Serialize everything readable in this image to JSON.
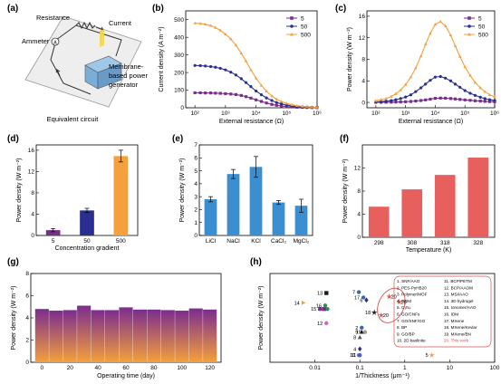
{
  "panel_letters": [
    "(a)",
    "(b)",
    "(c)",
    "(d)",
    "(e)",
    "(f)",
    "(g)",
    "(h)"
  ],
  "colors": {
    "purple": "#7b2d8e",
    "navy": "#2a2f8f",
    "orange": "#f4a03c",
    "blue": "#3b66b4",
    "red": "#d9534f",
    "green": "#2e8b57",
    "gray": "#666666"
  },
  "schematic": {
    "resistance": "Resistance",
    "current": "Current",
    "ammeter": "Ammeter",
    "ammeter_symbol": "A",
    "membrane": "Membrane-\nbased power\ngenerator",
    "caption": "Equivalent circuit"
  },
  "chart_data": [
    {
      "id": "b",
      "type": "line",
      "xscale": "log",
      "xlabel": "External resistance (Ω)",
      "ylabel": "Current density (A m⁻²)",
      "xlim": [
        50,
        1000000
      ],
      "ylim": [
        0,
        550
      ],
      "xticks": [
        {
          "v": 100,
          "label": "10²"
        },
        {
          "v": 1000,
          "label": "10³"
        },
        {
          "v": 10000,
          "label": "10⁴"
        },
        {
          "v": 100000,
          "label": "10⁵"
        },
        {
          "v": 1000000,
          "label": "10⁶"
        }
      ],
      "yticks": [
        0,
        100,
        200,
        300,
        400,
        500
      ],
      "x": [
        100,
        150,
        220,
        330,
        470,
        680,
        1000,
        1500,
        2200,
        3300,
        4700,
        6800,
        10000,
        15000,
        22000,
        33000,
        47000,
        68000,
        100000,
        150000,
        220000,
        330000,
        470000,
        680000,
        1000000
      ],
      "series": [
        {
          "name": "5",
          "color": "#7b2d8e",
          "marker": "square",
          "values": [
            85,
            85,
            84,
            84,
            83,
            82,
            80,
            78,
            75,
            70,
            63,
            55,
            45,
            36,
            27,
            19,
            14,
            10,
            7,
            5,
            3.5,
            2.4,
            1.7,
            1.2,
            0.8
          ]
        },
        {
          "name": "50",
          "color": "#2a2f8f",
          "marker": "circle",
          "values": [
            240,
            239,
            237,
            234,
            230,
            224,
            215,
            202,
            186,
            165,
            143,
            120,
            95,
            74,
            56,
            41,
            30,
            22,
            16,
            11,
            7.5,
            5.2,
            3.7,
            2.6,
            1.8
          ]
        },
        {
          "name": "500",
          "color": "#f4a03c",
          "marker": "triangle",
          "values": [
            480,
            478,
            474,
            466,
            455,
            440,
            418,
            390,
            355,
            310,
            265,
            215,
            168,
            127,
            94,
            67,
            49,
            35,
            25,
            17,
            12,
            8,
            5.7,
            4,
            2.8
          ]
        }
      ],
      "legend_position": "top-right"
    },
    {
      "id": "c",
      "type": "line",
      "xscale": "log",
      "xlabel": "External resistance (Ω)",
      "ylabel": "Power density (W m⁻²)",
      "xlim": [
        50,
        1000000
      ],
      "ylim": [
        -1,
        17
      ],
      "xticks": [
        {
          "v": 100,
          "label": "10²"
        },
        {
          "v": 1000,
          "label": "10³"
        },
        {
          "v": 10000,
          "label": "10⁴"
        },
        {
          "v": 100000,
          "label": "10⁵"
        },
        {
          "v": 1000000,
          "label": "10⁶"
        }
      ],
      "yticks": [
        0,
        4,
        8,
        12,
        16
      ],
      "x": [
        100,
        150,
        220,
        330,
        470,
        680,
        1000,
        1500,
        2200,
        3300,
        4700,
        6800,
        10000,
        15000,
        22000,
        33000,
        47000,
        68000,
        100000,
        150000,
        220000,
        330000,
        470000,
        680000,
        1000000
      ],
      "series": [
        {
          "name": "5",
          "color": "#7b2d8e",
          "marker": "square",
          "values": [
            0.01,
            0.02,
            0.03,
            0.04,
            0.06,
            0.08,
            0.12,
            0.17,
            0.25,
            0.35,
            0.46,
            0.6,
            0.75,
            0.8,
            0.78,
            0.72,
            0.64,
            0.55,
            0.46,
            0.38,
            0.3,
            0.24,
            0.19,
            0.15,
            0.12
          ]
        },
        {
          "name": "50",
          "color": "#2a2f8f",
          "marker": "circle",
          "values": [
            0.1,
            0.15,
            0.22,
            0.33,
            0.5,
            0.7,
            1.0,
            1.4,
            2.0,
            2.7,
            3.4,
            4.1,
            4.7,
            4.8,
            4.5,
            4.0,
            3.4,
            2.8,
            2.2,
            1.7,
            1.3,
            0.95,
            0.7,
            0.5,
            0.35
          ]
        },
        {
          "name": "500",
          "color": "#f4a03c",
          "marker": "triangle",
          "values": [
            0.3,
            0.5,
            0.7,
            1.1,
            1.6,
            2.3,
            3.3,
            4.7,
            6.4,
            8.6,
            10.8,
            12.8,
            14.5,
            15.0,
            14.2,
            12.5,
            10.5,
            8.5,
            6.6,
            5.0,
            3.7,
            2.7,
            2.0,
            1.4,
            1.0
          ]
        }
      ],
      "legend_position": "top-right"
    },
    {
      "id": "d",
      "type": "bar",
      "xlabel": "Concentration gradient",
      "ylabel": "Power density (W m⁻²)",
      "ylim": [
        0,
        17
      ],
      "yticks": [
        0,
        4,
        8,
        12,
        16
      ],
      "categories": [
        "5",
        "50",
        "500"
      ],
      "values": [
        1.0,
        4.7,
        14.9
      ],
      "errors": [
        0.3,
        0.4,
        1.1
      ],
      "colors": [
        "#7b2d8e",
        "#2a2f8f",
        "#f4a03c"
      ]
    },
    {
      "id": "e",
      "type": "bar",
      "xlabel": "",
      "ylabel": "Power density (W m⁻²)",
      "ylim": [
        0,
        7
      ],
      "yticks": [
        0,
        1,
        2,
        3,
        4,
        5,
        6,
        7
      ],
      "categories": [
        "LiCl",
        "NaCl",
        "KCl",
        "CaCl₂",
        "MgCl₂"
      ],
      "values": [
        2.8,
        4.75,
        5.3,
        2.55,
        2.3
      ],
      "errors": [
        0.2,
        0.35,
        0.8,
        0.15,
        0.5
      ],
      "color": "#3b8fd1"
    },
    {
      "id": "f",
      "type": "bar",
      "xlabel": "Temperature (K)",
      "ylabel": "Power density (W m⁻²)",
      "ylim": [
        0,
        16
      ],
      "yticks": [
        0,
        4,
        8,
        12
      ],
      "categories": [
        "298",
        "308",
        "318",
        "328"
      ],
      "values": [
        5.3,
        8.3,
        10.8,
        13.8
      ],
      "color": "#e8605e"
    },
    {
      "id": "g",
      "type": "bar",
      "xlabel": "Operating time (day)",
      "ylabel": "Power density (W m⁻²)",
      "ylim": [
        0,
        8
      ],
      "yticks": [
        0,
        2,
        4,
        6,
        8
      ],
      "xlim": [
        -8,
        128
      ],
      "xticks": [
        0,
        20,
        40,
        60,
        80,
        100,
        120
      ],
      "x": [
        0,
        10,
        20,
        30,
        40,
        50,
        60,
        70,
        80,
        90,
        100,
        110,
        120
      ],
      "values": [
        4.8,
        4.65,
        4.7,
        5.1,
        4.7,
        4.7,
        4.95,
        4.75,
        4.75,
        4.7,
        4.65,
        4.85,
        4.75
      ],
      "gradient": [
        "#7b2d8e",
        "#f4a03c"
      ]
    },
    {
      "id": "h",
      "type": "scatter",
      "xscale": "log",
      "xlabel": "1/Thickness (μm⁻¹)",
      "ylabel": "Power density (W m⁻²)",
      "xlim": [
        0.001,
        100
      ],
      "ylim": [
        0,
        1
      ],
      "xticks": [
        {
          "v": 0.01,
          "label": "0.01"
        },
        {
          "v": 0.1,
          "label": "0.1"
        },
        {
          "v": 1,
          "label": "1"
        },
        {
          "v": 10,
          "label": "10"
        },
        {
          "v": 100,
          "label": "100"
        }
      ],
      "points": [
        {
          "label": "1",
          "x": 0.019,
          "y": 0.6,
          "color": "#2e8b57",
          "marker": "circle"
        },
        {
          "label": "2",
          "x": 0.11,
          "y": 0.39,
          "color": "#3b66b4",
          "marker": "circle"
        },
        {
          "label": "3",
          "x": 0.016,
          "y": 0.6,
          "color": "#7b2d8e",
          "marker": "square"
        },
        {
          "label": "4",
          "x": 0.1,
          "y": 0.15,
          "color": "#2a2f8f",
          "marker": "diamond"
        },
        {
          "label": "5",
          "x": 4.0,
          "y": 0.08,
          "color": "#f4a03c",
          "marker": "star"
        },
        {
          "label": "6",
          "x": 0.14,
          "y": 0.7,
          "color": "#2a2f8f",
          "marker": "diamond"
        },
        {
          "label": "7",
          "x": 0.095,
          "y": 0.79,
          "color": "#3b66b4",
          "marker": "circle"
        },
        {
          "label": "8",
          "x": 0.1,
          "y": 0.28,
          "color": "#555555",
          "marker": "triangle"
        },
        {
          "label": "9",
          "x": 0.11,
          "y": 0.34,
          "color": "#1a1a1a",
          "marker": "triangle"
        },
        {
          "label": "10",
          "x": 0.095,
          "y": 0.08,
          "color": "#7b68ee",
          "marker": "circle"
        },
        {
          "label": "11",
          "x": 0.1,
          "y": 0.08,
          "color": "#3b66b4",
          "marker": "circle"
        },
        {
          "label": "12",
          "x": 0.018,
          "y": 0.44,
          "color": "#cc66cc",
          "marker": "circle"
        },
        {
          "label": "13",
          "x": 0.018,
          "y": 0.78,
          "color": "#1a1a1a",
          "marker": "square"
        },
        {
          "label": "14",
          "x": 0.0055,
          "y": 0.67,
          "color": "#f4a03c",
          "marker": "triangle-right"
        },
        {
          "label": "15",
          "x": 0.013,
          "y": 0.6,
          "color": "#7b2d8e",
          "marker": "circle"
        },
        {
          "label": "16",
          "x": 0.017,
          "y": 0.64,
          "color": "#2e8b57",
          "marker": "circle"
        },
        {
          "label": "17",
          "x": 0.12,
          "y": 0.73,
          "color": "#3b66b4",
          "marker": "circle"
        },
        {
          "label": "18",
          "x": 0.21,
          "y": 0.56,
          "color": "#1a1a1a",
          "marker": "star"
        },
        {
          "label": "19",
          "x": 0.13,
          "y": 0.34,
          "color": "#999999",
          "marker": "circle"
        },
        {
          "label": "20",
          "x": 0.3,
          "y": 0.53,
          "color": "#d9534f",
          "marker": "star"
        },
        {
          "label": "20",
          "x": 0.45,
          "y": 0.74,
          "color": "#d9534f",
          "marker": "star"
        },
        {
          "label": "20",
          "x": 0.75,
          "y": 0.68,
          "color": "#d9534f",
          "marker": "star"
        }
      ],
      "legend_left": [
        "1. SNF/AAO",
        "2. PES-PyHB20",
        "3. Polymer/MOF",
        "4. GOM",
        "5. C₃N₄",
        "6. GO/CNFs",
        "7. GO/SNF/GO",
        "8. BP",
        "9. GO/BP",
        "10. 2D kaolinite"
      ],
      "legend_right": [
        "11. BCP/PETM",
        "12. BCP/AAOM",
        "13. MSI/AAO",
        "14. 3D hydrogel",
        "15. Ionomer/AAO",
        "16. IDM",
        "17. MXene",
        "18. MXene/Kevlar",
        "19. MXene/BN",
        "20. This work"
      ]
    }
  ]
}
